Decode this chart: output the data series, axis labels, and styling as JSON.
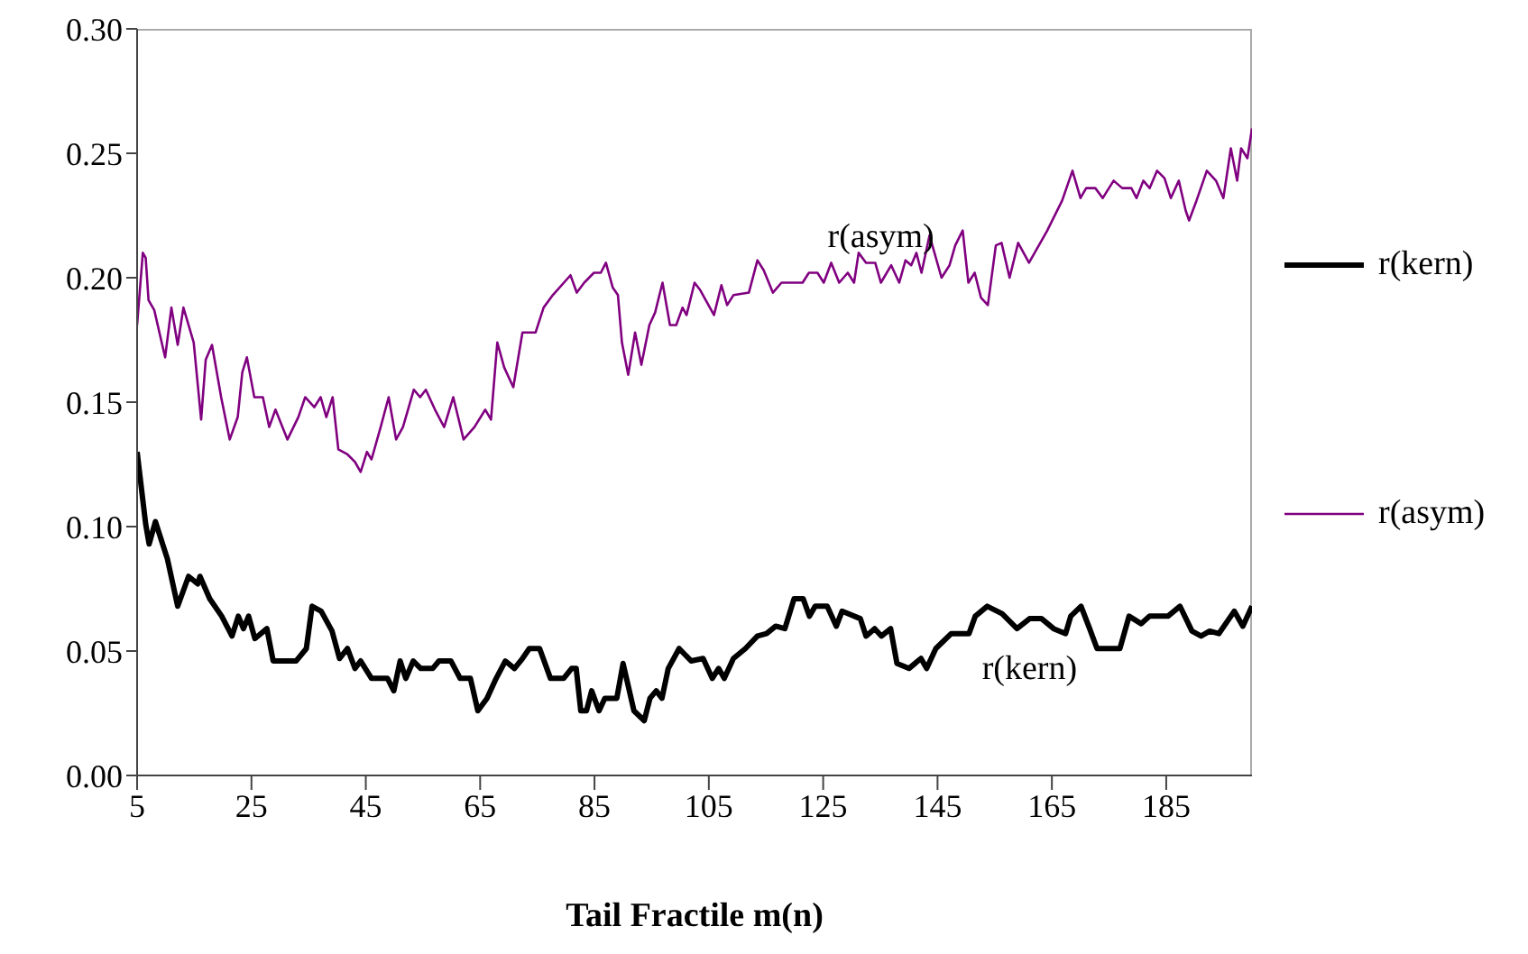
{
  "chart_data": {
    "type": "line",
    "xlabel": "Tail Fractile m(n)",
    "xlim": [
      5,
      200
    ],
    "xticks": [
      5,
      25,
      45,
      65,
      85,
      105,
      125,
      145,
      165,
      185
    ],
    "ylim": [
      0,
      0.3
    ],
    "yticks": [
      {
        "value": 0,
        "label": "0.00"
      },
      {
        "value": 0.05,
        "label": "0.05"
      },
      {
        "value": 0.1,
        "label": "0.10"
      },
      {
        "value": 0.15,
        "label": "0.15"
      },
      {
        "value": 0.2,
        "label": "0.20"
      },
      {
        "value": 0.25,
        "label": "0.25"
      },
      {
        "value": 0.3,
        "label": "0.30"
      }
    ],
    "grid": false,
    "legend": "right",
    "marker": "none",
    "line_style": "solid",
    "annotations": [
      {
        "text": "r(asym)",
        "x": 135.1,
        "y": 0.198
      },
      {
        "text": "r(kern)",
        "x": 161.1,
        "y": 0.063
      }
    ],
    "series": [
      {
        "name": "r(kern)",
        "color": "#000000",
        "x": [
          5,
          6.5,
          7.1,
          8.2,
          10.3,
          12.1,
          14,
          15.6,
          16,
          17.7,
          19.8,
          21.6,
          22.7,
          23.6,
          24.5,
          25.6,
          27.7,
          28.8,
          32.8,
          34.6,
          35.6,
          37.2,
          39.1,
          40.4,
          41.8,
          43.1,
          44.1,
          46,
          48.8,
          49.9,
          51,
          52,
          53.3,
          54.6,
          56.7,
          57.8,
          59.9,
          61.5,
          63.3,
          64.6,
          66.2,
          67.8,
          69.4,
          71,
          72.4,
          73.6,
          75.4,
          77.3,
          79.6,
          81,
          81.8,
          82.6,
          83.6,
          84.5,
          85.8,
          86.8,
          88.9,
          90,
          91.9,
          93.7,
          94.7,
          95.8,
          96.8,
          97.9,
          99.8,
          101.9,
          104,
          105.6,
          106.7,
          107.7,
          109.3,
          111.4,
          113.5,
          115.1,
          116.7,
          118.3,
          119.9,
          121.5,
          122.6,
          123.6,
          125.7,
          127.3,
          128.3,
          131.5,
          132.5,
          134,
          135.2,
          136.8,
          137.9,
          140,
          142.1,
          143.1,
          144.7,
          147.4,
          150.5,
          151.6,
          153.7,
          156.3,
          158.9,
          161.1,
          163.2,
          165.3,
          167.4,
          168.3,
          170.1,
          171.6,
          172.9,
          176.9,
          178.5,
          180.6,
          182.1,
          185.3,
          187.4,
          189.5,
          191.1,
          192.6,
          194.2,
          196.9,
          198.4,
          200
        ],
        "values": [
          0.13,
          0.101,
          0.093,
          0.102,
          0.087,
          0.068,
          0.08,
          0.077,
          0.08,
          0.071,
          0.064,
          0.056,
          0.064,
          0.059,
          0.064,
          0.055,
          0.059,
          0.046,
          0.046,
          0.051,
          0.068,
          0.066,
          0.058,
          0.047,
          0.051,
          0.043,
          0.046,
          0.039,
          0.039,
          0.034,
          0.046,
          0.039,
          0.046,
          0.043,
          0.043,
          0.046,
          0.046,
          0.039,
          0.039,
          0.026,
          0.031,
          0.039,
          0.046,
          0.043,
          0.047,
          0.051,
          0.051,
          0.039,
          0.039,
          0.043,
          0.043,
          0.026,
          0.026,
          0.034,
          0.026,
          0.031,
          0.031,
          0.045,
          0.026,
          0.022,
          0.031,
          0.034,
          0.031,
          0.043,
          0.051,
          0.046,
          0.047,
          0.039,
          0.043,
          0.039,
          0.047,
          0.051,
          0.056,
          0.057,
          0.06,
          0.059,
          0.071,
          0.071,
          0.064,
          0.068,
          0.068,
          0.06,
          0.066,
          0.063,
          0.056,
          0.059,
          0.056,
          0.059,
          0.045,
          0.043,
          0.047,
          0.043,
          0.051,
          0.057,
          0.057,
          0.064,
          0.068,
          0.065,
          0.059,
          0.063,
          0.063,
          0.059,
          0.057,
          0.064,
          0.068,
          0.059,
          0.051,
          0.051,
          0.064,
          0.061,
          0.064,
          0.064,
          0.068,
          0.058,
          0.056,
          0.058,
          0.057,
          0.066,
          0.06,
          0.068
        ]
      },
      {
        "name": "r(asym)",
        "color": "#800080",
        "x": [
          5,
          6,
          6.5,
          7,
          8,
          9.1,
          9.9,
          11,
          12.1,
          13.1,
          14.9,
          16.2,
          17,
          18.1,
          19.7,
          21.2,
          22.6,
          23.4,
          24.2,
          25.5,
          27,
          28.1,
          29.2,
          31.3,
          33.2,
          34.4,
          36,
          37.1,
          38.1,
          39.2,
          40.2,
          41.8,
          43.1,
          44.1,
          45.2,
          46,
          47.6,
          49,
          50.3,
          51.5,
          53.4,
          54.5,
          55.5,
          57.1,
          58.7,
          60.3,
          62.1,
          64,
          65.9,
          66.9,
          68,
          69.2,
          70.8,
          72.4,
          74.7,
          76.1,
          77.7,
          80.8,
          81.9,
          83.2,
          84.9,
          86.1,
          87,
          88.2,
          89.1,
          89.8,
          90.9,
          92.1,
          93.2,
          94.6,
          95.6,
          96.9,
          98.2,
          99.3,
          100.4,
          101.1,
          102.5,
          103.5,
          105.9,
          107.2,
          108.2,
          109.3,
          112,
          113.5,
          114.6,
          116.2,
          117.7,
          121.4,
          122.5,
          124,
          125.1,
          126.4,
          127.8,
          129.3,
          130.4,
          131.2,
          132.5,
          134.1,
          135.1,
          136.9,
          138.3,
          139.4,
          140.4,
          141.3,
          142.2,
          143.6,
          145.7,
          147.1,
          148.1,
          149.4,
          150.4,
          151.5,
          152.6,
          153.8,
          155.2,
          156.2,
          157.6,
          159.1,
          161,
          164.2,
          166.8,
          168.6,
          170,
          171,
          172.6,
          173.9,
          175.8,
          177.3,
          178.9,
          179.8,
          181,
          182.1,
          183.4,
          184.7,
          185.8,
          187.2,
          188.4,
          189,
          190.3,
          192.1,
          193.7,
          195,
          196.3,
          197.4,
          198.1,
          199.2,
          200
        ],
        "values": [
          0.181,
          0.21,
          0.208,
          0.191,
          0.187,
          0.176,
          0.168,
          0.188,
          0.173,
          0.188,
          0.174,
          0.143,
          0.167,
          0.173,
          0.152,
          0.135,
          0.144,
          0.162,
          0.168,
          0.152,
          0.152,
          0.14,
          0.147,
          0.135,
          0.144,
          0.152,
          0.148,
          0.152,
          0.144,
          0.152,
          0.131,
          0.129,
          0.126,
          0.122,
          0.13,
          0.127,
          0.14,
          0.152,
          0.135,
          0.14,
          0.155,
          0.152,
          0.155,
          0.147,
          0.14,
          0.152,
          0.135,
          0.14,
          0.147,
          0.143,
          0.174,
          0.164,
          0.156,
          0.178,
          0.178,
          0.188,
          0.193,
          0.201,
          0.194,
          0.198,
          0.202,
          0.202,
          0.206,
          0.196,
          0.193,
          0.174,
          0.161,
          0.178,
          0.165,
          0.181,
          0.186,
          0.198,
          0.181,
          0.181,
          0.188,
          0.185,
          0.198,
          0.195,
          0.185,
          0.197,
          0.189,
          0.193,
          0.194,
          0.207,
          0.203,
          0.194,
          0.198,
          0.198,
          0.202,
          0.202,
          0.198,
          0.206,
          0.198,
          0.202,
          0.198,
          0.21,
          0.206,
          0.206,
          0.198,
          0.205,
          0.198,
          0.207,
          0.205,
          0.21,
          0.202,
          0.217,
          0.2,
          0.205,
          0.213,
          0.219,
          0.198,
          0.202,
          0.192,
          0.189,
          0.213,
          0.214,
          0.2,
          0.214,
          0.206,
          0.219,
          0.231,
          0.243,
          0.232,
          0.236,
          0.236,
          0.232,
          0.239,
          0.236,
          0.236,
          0.232,
          0.239,
          0.236,
          0.243,
          0.24,
          0.232,
          0.239,
          0.227,
          0.223,
          0.231,
          0.243,
          0.239,
          0.232,
          0.252,
          0.239,
          0.252,
          0.248,
          0.26
        ]
      }
    ]
  }
}
